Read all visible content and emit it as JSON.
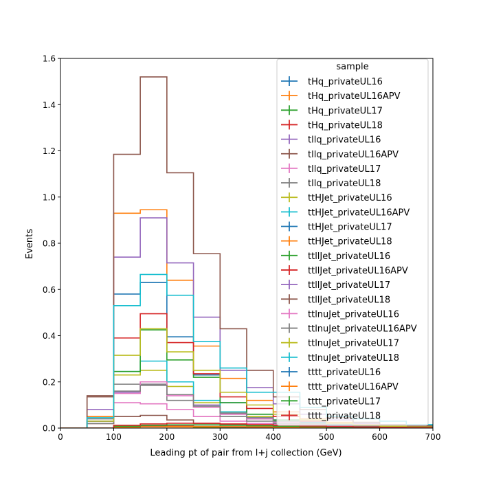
{
  "chart_data": {
    "type": "step-histogram",
    "xlabel": "Leading pt of pair from l+j collection (GeV)",
    "ylabel": "Events",
    "xlim": [
      0,
      700
    ],
    "ylim": [
      0,
      1.6
    ],
    "xticks": [
      "0",
      "100",
      "200",
      "300",
      "400",
      "500",
      "600",
      "700"
    ],
    "yticks": [
      "0.0",
      "0.2",
      "0.4",
      "0.6",
      "0.8",
      "1.0",
      "1.2",
      "1.4",
      "1.6"
    ],
    "bin_edges": [
      0,
      50,
      100,
      150,
      200,
      250,
      300,
      350,
      400,
      450,
      500,
      550,
      600,
      650,
      700
    ],
    "legend": {
      "title": "sample",
      "placement": "upper right"
    },
    "series": [
      {
        "name": "tHq_privateUL16",
        "color": "#1f77b4",
        "values": [
          0,
          0,
          0.005,
          0.006,
          0.006,
          0.004,
          0.003,
          0.002,
          0.001,
          0.001,
          0.0005,
          0.0003,
          0.0002,
          0.0001
        ]
      },
      {
        "name": "tHq_privateUL16APV",
        "color": "#ff7f0e",
        "values": [
          0,
          0,
          0.004,
          0.005,
          0.005,
          0.004,
          0.003,
          0.002,
          0.001,
          0.001,
          0.0005,
          0.0003,
          0.0002,
          0.0001
        ]
      },
      {
        "name": "tHq_privateUL17",
        "color": "#2ca02c",
        "values": [
          0,
          0,
          0.006,
          0.008,
          0.007,
          0.005,
          0.004,
          0.002,
          0.002,
          0.001,
          0.0006,
          0.0004,
          0.0002,
          0.0001
        ]
      },
      {
        "name": "tHq_privateUL18",
        "color": "#d62728",
        "values": [
          0,
          0,
          0.008,
          0.01,
          0.009,
          0.007,
          0.005,
          0.003,
          0.002,
          0.001,
          0.0008,
          0.0005,
          0.0003,
          0.0002
        ]
      },
      {
        "name": "tllq_privateUL16",
        "color": "#9467bd",
        "values": [
          0,
          0.08,
          0.155,
          0.19,
          0.145,
          0.1,
          0.06,
          0.04,
          0.025,
          0.015,
          0.01,
          0.006,
          0.004,
          0.002
        ]
      },
      {
        "name": "tllq_privateUL16APV",
        "color": "#8c564b",
        "values": [
          0,
          0.14,
          0.05,
          0.055,
          0.035,
          0.02,
          0.015,
          0.01,
          0.008,
          0.006,
          0.004,
          0.003,
          0.002,
          0.001
        ]
      },
      {
        "name": "tllq_privateUL17",
        "color": "#e377c2",
        "values": [
          0,
          0.03,
          0.11,
          0.105,
          0.08,
          0.05,
          0.03,
          0.02,
          0.015,
          0.01,
          0.006,
          0.004,
          0.003,
          0.002
        ]
      },
      {
        "name": "tllq_privateUL18",
        "color": "#7f7f7f",
        "values": [
          0,
          0.04,
          0.19,
          0.19,
          0.12,
          0.09,
          0.05,
          0.03,
          0.02,
          0.012,
          0.008,
          0.005,
          0.003,
          0.002
        ]
      },
      {
        "name": "ttHJet_privateUL16",
        "color": "#bcbd22",
        "values": [
          0,
          0.02,
          0.23,
          0.25,
          0.18,
          0.11,
          0.07,
          0.05,
          0.03,
          0.02,
          0.015,
          0.01,
          0.006,
          0.004
        ]
      },
      {
        "name": "ttHJet_privateUL16APV",
        "color": "#17becf",
        "values": [
          0,
          0.03,
          0.245,
          0.29,
          0.2,
          0.12,
          0.07,
          0.045,
          0.03,
          0.02,
          0.012,
          0.008,
          0.005,
          0.003
        ]
      },
      {
        "name": "ttHJet_privateUL17",
        "color": "#1f77b4",
        "values": [
          0,
          0.03,
          0.58,
          0.63,
          0.395,
          0.23,
          0.11,
          0.06,
          0.035,
          0.025,
          0.015,
          0.01,
          0.006,
          0.004
        ]
      },
      {
        "name": "ttHJet_privateUL18",
        "color": "#ff7f0e",
        "values": [
          0,
          0.05,
          0.93,
          0.945,
          0.64,
          0.355,
          0.215,
          0.12,
          0.07,
          0.04,
          0.025,
          0.015,
          0.01,
          0.006
        ]
      },
      {
        "name": "ttllJet_privateUL16",
        "color": "#2ca02c",
        "values": [
          0,
          0.02,
          0.245,
          0.425,
          0.295,
          0.22,
          0.11,
          0.06,
          0.035,
          0.02,
          0.012,
          0.008,
          0.005,
          0.003
        ]
      },
      {
        "name": "ttllJet_privateUL16APV",
        "color": "#d62728",
        "values": [
          0,
          0.02,
          0.39,
          0.495,
          0.37,
          0.235,
          0.135,
          0.085,
          0.05,
          0.03,
          0.02,
          0.012,
          0.008,
          0.005
        ]
      },
      {
        "name": "ttllJet_privateUL17",
        "color": "#9467bd",
        "values": [
          0,
          0.03,
          0.74,
          0.91,
          0.715,
          0.48,
          0.25,
          0.175,
          0.105,
          0.06,
          0.035,
          0.02,
          0.012,
          0.008
        ]
      },
      {
        "name": "ttllJet_privateUL18",
        "color": "#8c564b",
        "values": [
          0,
          0.135,
          1.185,
          1.52,
          1.105,
          0.755,
          0.43,
          0.25,
          0.135,
          0.08,
          0.045,
          0.025,
          0.015,
          0.01
        ]
      },
      {
        "name": "ttlnuJet_privateUL16",
        "color": "#e377c2",
        "values": [
          0,
          0.02,
          0.15,
          0.2,
          0.14,
          0.09,
          0.06,
          0.04,
          0.025,
          0.015,
          0.01,
          0.006,
          0.004,
          0.002
        ]
      },
      {
        "name": "ttlnuJet_privateUL16APV",
        "color": "#7f7f7f",
        "values": [
          0,
          0.02,
          0.16,
          0.185,
          0.145,
          0.095,
          0.065,
          0.045,
          0.03,
          0.018,
          0.012,
          0.008,
          0.005,
          0.003
        ]
      },
      {
        "name": "ttlnuJet_privateUL17",
        "color": "#bcbd22",
        "values": [
          0,
          0.03,
          0.315,
          0.43,
          0.33,
          0.25,
          0.155,
          0.1,
          0.06,
          0.035,
          0.02,
          0.012,
          0.008,
          0.005
        ]
      },
      {
        "name": "ttlnuJet_privateUL18",
        "color": "#17becf",
        "values": [
          0,
          0.045,
          0.53,
          0.665,
          0.575,
          0.375,
          0.26,
          0.155,
          0.155,
          0.09,
          0.05,
          0.04,
          0.03,
          0.015
        ]
      },
      {
        "name": "tttt_privateUL16",
        "color": "#1f77b4",
        "values": [
          0,
          0,
          0.004,
          0.006,
          0.007,
          0.007,
          0.006,
          0.005,
          0.004,
          0.003,
          0.002,
          0.0015,
          0.001,
          0.0007
        ]
      },
      {
        "name": "tttt_privateUL16APV",
        "color": "#ff7f0e",
        "values": [
          0,
          0,
          0.004,
          0.006,
          0.007,
          0.007,
          0.006,
          0.005,
          0.004,
          0.003,
          0.002,
          0.0015,
          0.001,
          0.0007
        ]
      },
      {
        "name": "tttt_privateUL17",
        "color": "#2ca02c",
        "values": [
          0,
          0,
          0.008,
          0.012,
          0.014,
          0.014,
          0.012,
          0.01,
          0.008,
          0.006,
          0.004,
          0.003,
          0.002,
          0.0015
        ]
      },
      {
        "name": "tttt_privateUL18",
        "color": "#d62728",
        "values": [
          0,
          0,
          0.012,
          0.018,
          0.021,
          0.021,
          0.018,
          0.015,
          0.012,
          0.009,
          0.006,
          0.0045,
          0.003,
          0.002
        ]
      }
    ]
  }
}
